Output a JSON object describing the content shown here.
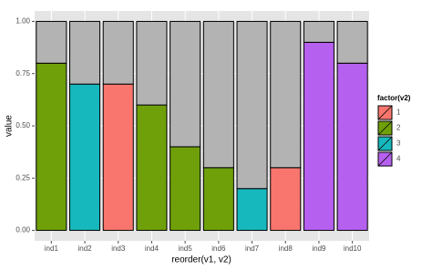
{
  "chart_data": {
    "type": "stacked-bar",
    "x_label": "reorder(v1, v2)",
    "y_label": "value",
    "categories": [
      "ind1",
      "ind2",
      "ind3",
      "ind4",
      "ind5",
      "ind6",
      "ind7",
      "ind8",
      "ind9",
      "ind10"
    ],
    "values": [
      0.8,
      0.7,
      0.7,
      0.6,
      0.4,
      0.3,
      0.2,
      0.3,
      0.9,
      0.8
    ],
    "groups": [
      1,
      2,
      0,
      1,
      1,
      1,
      2,
      0,
      3,
      3
    ],
    "upper_values": [
      0.2,
      0.3,
      0.3,
      0.4,
      0.6,
      0.7,
      0.8,
      0.7,
      0.1,
      0.2
    ],
    "upper_color": "#b3b3b3",
    "ylim": [
      -0.05,
      1.05
    ],
    "yticks": [
      {
        "value": 0,
        "label": "0.00"
      },
      {
        "value": 0.25,
        "label": "0.25"
      },
      {
        "value": 0.5,
        "label": "0.50"
      },
      {
        "value": 0.75,
        "label": "0.75"
      },
      {
        "value": 1,
        "label": "1.00"
      }
    ],
    "grid": true,
    "legend": {
      "title": "factor(v2)",
      "position": "right",
      "entries": [
        {
          "label": "1",
          "color": "#f8766d"
        },
        {
          "label": "2",
          "color": "#6fa00a"
        },
        {
          "label": "3",
          "color": "#16b8bd"
        },
        {
          "label": "4",
          "color": "#b660f0"
        }
      ]
    }
  }
}
